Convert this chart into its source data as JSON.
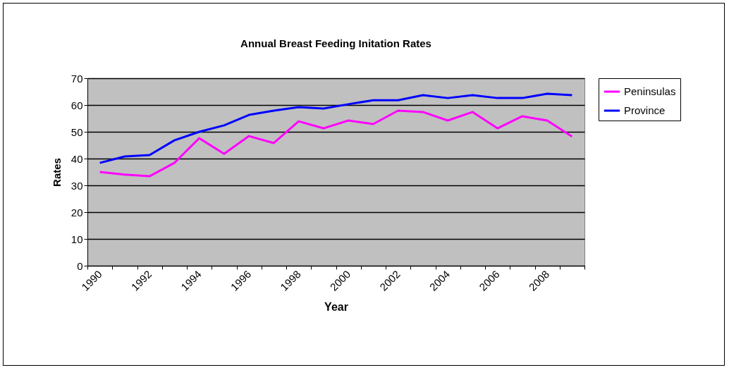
{
  "chart_data": {
    "type": "line",
    "title": "Annual Breast Feeding Initation Rates",
    "xlabel": "Year",
    "ylabel": "Rates",
    "categories": [
      "1990",
      null,
      "1992",
      null,
      "1994",
      null,
      "1996",
      null,
      "1998",
      null,
      "2000",
      null,
      "2002",
      null,
      "2004",
      null,
      "2006",
      null,
      "2008",
      null
    ],
    "series": [
      {
        "name": "Peninsulas",
        "color": "#ff00ff",
        "values": [
          35,
          34,
          33.4,
          38.4,
          47.6,
          41.8,
          48.4,
          45.8,
          53.9,
          51.3,
          54.2,
          52.9,
          57.9,
          57.4,
          54.2,
          57.4,
          51.3,
          55.8,
          54.2,
          48.2
        ]
      },
      {
        "name": "Province",
        "color": "#0000ff",
        "values": [
          38.4,
          40.8,
          41.3,
          46.8,
          50,
          52.4,
          56.3,
          57.9,
          59.2,
          58.7,
          60.3,
          61.8,
          61.8,
          63.7,
          62.6,
          63.7,
          62.6,
          62.6,
          64.2,
          63.7
        ]
      }
    ],
    "ylim": [
      0,
      70
    ],
    "yticks": [
      0,
      10,
      20,
      30,
      40,
      50,
      60,
      70
    ],
    "grid": "y",
    "legend": "right",
    "marker": "none",
    "line_style": "solid"
  }
}
